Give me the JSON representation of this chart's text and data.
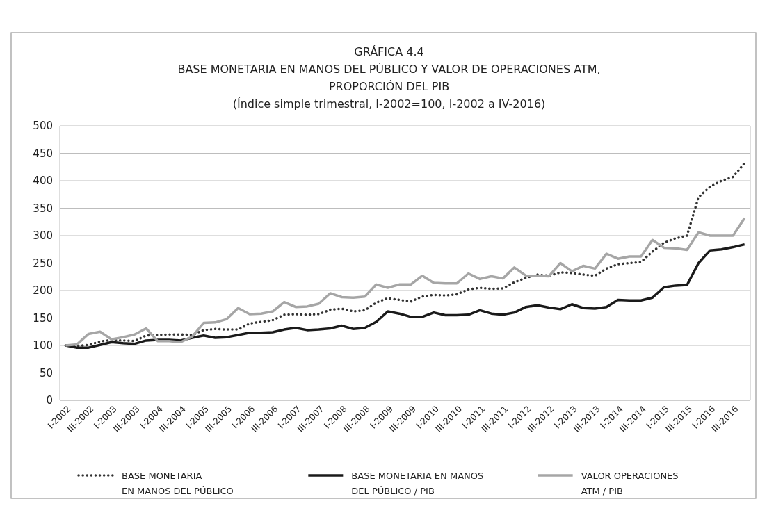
{
  "chart_data": {
    "type": "line",
    "title": "GRÁFICA 4.4\nBASE MONETARIA EN MANOS DEL PÚBLICO Y VALOR DE OPERACIONES ATM,\nPROPORCIÓN DEL PIB",
    "subtitle": "(Índice simple trimestral, I-2002=100, I-2002 a IV-2016)",
    "categories": [
      "I-2002",
      null,
      "III-2002",
      null,
      "I-2003",
      null,
      "III-2003",
      null,
      "I-2004",
      null,
      "III-2004",
      null,
      "I-2005",
      null,
      "III-2005",
      null,
      "I-2006",
      null,
      "III-2006",
      null,
      "I-2007",
      null,
      "III-2007",
      null,
      "I-2008",
      null,
      "III-2008",
      null,
      "I-2009",
      null,
      "III-2009",
      null,
      "I-2010",
      null,
      "III-2010",
      null,
      "I-2011",
      null,
      "III-2011",
      null,
      "I-2012",
      null,
      "III-2012",
      null,
      "I-2013",
      null,
      "III-2013",
      null,
      "I-2014",
      null,
      "III-2014",
      null,
      "I-2015",
      null,
      "III-2015",
      null,
      "I-2016",
      null,
      "III-2016",
      null
    ],
    "series": [
      {
        "name": "BASE MONETARIA\nEN MANOS DEL PÚBLICO",
        "color": "#333333",
        "line_style": "dotted",
        "values": [
          100,
          99,
          101,
          107,
          110,
          109,
          108,
          118,
          119,
          120,
          120,
          119,
          128,
          130,
          129,
          129,
          140,
          143,
          146,
          156,
          157,
          156,
          157,
          165,
          167,
          162,
          164,
          178,
          186,
          183,
          180,
          189,
          192,
          191,
          193,
          202,
          205,
          203,
          204,
          215,
          223,
          229,
          227,
          233,
          232,
          229,
          227,
          240,
          248,
          250,
          252,
          271,
          287,
          295,
          300,
          370,
          389,
          400,
          407,
          432
        ]
      },
      {
        "name": "BASE MONETARIA EN MANOS\nDEL PÚBLICO / PIB",
        "color": "#1a1a1a",
        "line_style": "solid",
        "values": [
          100,
          96,
          96,
          101,
          106,
          104,
          103,
          109,
          110,
          110,
          109,
          114,
          118,
          114,
          115,
          119,
          123,
          123,
          124,
          129,
          132,
          128,
          129,
          131,
          136,
          130,
          132,
          143,
          162,
          158,
          152,
          152,
          160,
          155,
          155,
          156,
          164,
          158,
          156,
          160,
          170,
          173,
          169,
          166,
          175,
          168,
          167,
          170,
          183,
          182,
          182,
          187,
          206,
          209,
          210,
          250,
          273,
          275,
          279,
          284
        ]
      },
      {
        "name": "VALOR OPERACIONES\nATM / PIB",
        "color": "#a6a6a6",
        "line_style": "solid",
        "values": [
          100,
          102,
          121,
          125,
          111,
          115,
          120,
          131,
          108,
          108,
          106,
          116,
          141,
          142,
          148,
          168,
          157,
          158,
          162,
          179,
          170,
          171,
          176,
          195,
          188,
          187,
          189,
          211,
          205,
          211,
          211,
          227,
          214,
          213,
          213,
          231,
          221,
          226,
          222,
          242,
          227,
          227,
          226,
          250,
          235,
          245,
          240,
          267,
          258,
          262,
          262,
          292,
          278,
          277,
          274,
          306,
          300,
          300,
          300,
          332
        ]
      }
    ],
    "ylim": [
      0,
      500
    ],
    "yticks": [
      0,
      50,
      100,
      150,
      200,
      250,
      300,
      350,
      400,
      450,
      500
    ],
    "grid": "y",
    "legend": "bottom",
    "marker": "none"
  }
}
